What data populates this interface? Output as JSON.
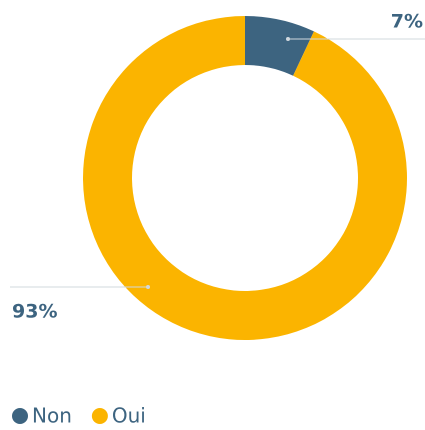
{
  "chart_data": {
    "type": "donut",
    "categories": [
      "Non",
      "Oui"
    ],
    "values": [
      7,
      93
    ],
    "value_labels": [
      "7%",
      "93%"
    ],
    "colors": [
      "#3d6480",
      "#fbb400"
    ],
    "legend": "bottom-left"
  }
}
